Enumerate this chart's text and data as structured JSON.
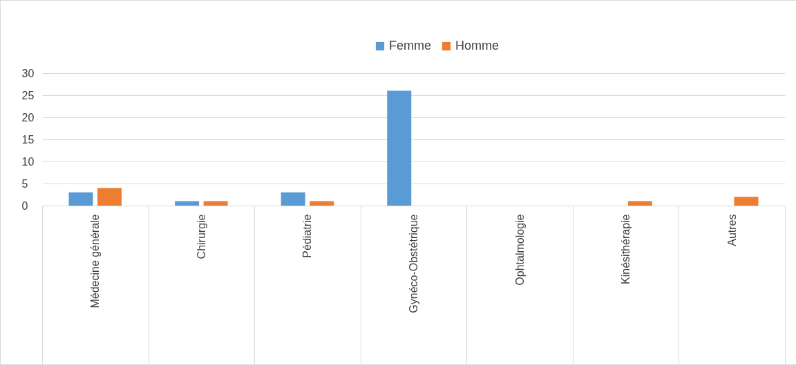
{
  "chart_data": {
    "type": "bar",
    "categories": [
      "Médecine générale",
      "Chirurgie",
      "Pédiatrie",
      "Gynéco-Obstétrique",
      "Ophtalmologie",
      "Kinésithérapie",
      "Autres"
    ],
    "series": [
      {
        "name": "Femme",
        "color": "#5b9bd5",
        "values": [
          3,
          1,
          3,
          26,
          0,
          0,
          0
        ]
      },
      {
        "name": "Homme",
        "color": "#ed7d31",
        "values": [
          4,
          1,
          1,
          0,
          0,
          1,
          2
        ]
      }
    ],
    "ylim": [
      0,
      30
    ],
    "yticks": [
      0,
      5,
      10,
      15,
      20,
      25,
      30
    ],
    "grid": "y",
    "legend": "top"
  }
}
